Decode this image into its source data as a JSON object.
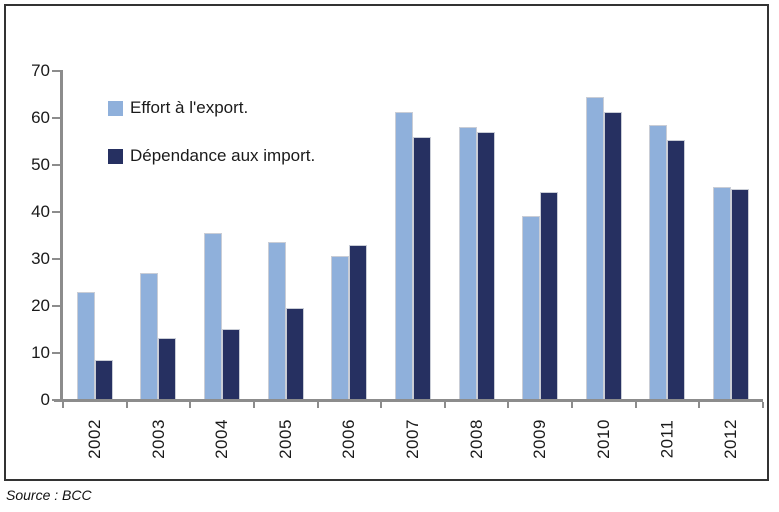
{
  "source_note": "Source : BCC",
  "legend": {
    "items": [
      {
        "label": "Effort à l'export.",
        "color": "#8FB0DB"
      },
      {
        "label": "Dépendance aux import.",
        "color": "#263061"
      }
    ]
  },
  "colors": {
    "series_light_blue": "#8FB0DB",
    "series_dark_navy": "#263061",
    "axis_gray": "#8c8c8c",
    "frame_border": "#333333",
    "text": "#1a1a1a"
  },
  "chart_data": {
    "type": "bar",
    "title": "",
    "xlabel": "",
    "ylabel": "",
    "categories": [
      "2002",
      "2003",
      "2004",
      "2005",
      "2006",
      "2007",
      "2008",
      "2009",
      "2010",
      "2011",
      "2012"
    ],
    "series": [
      {
        "name": "Effort à l'export.",
        "color": "#8FB0DB",
        "values": [
          22.8,
          26.8,
          35.5,
          33.5,
          30.5,
          61.2,
          58.1,
          39.1,
          64.5,
          58.5,
          45.3
        ]
      },
      {
        "name": "Dépendance aux import.",
        "color": "#263061",
        "values": [
          8.4,
          13.0,
          14.9,
          19.5,
          32.8,
          56.0,
          56.9,
          44.2,
          61.2,
          55.2,
          44.8
        ]
      }
    ],
    "ylim": [
      0,
      70
    ],
    "yticks": [
      70,
      60,
      50,
      40,
      30,
      20,
      10,
      0
    ],
    "grid": false,
    "legend_position": "upper-left-inside",
    "x_labels_rotation_deg": -90
  }
}
